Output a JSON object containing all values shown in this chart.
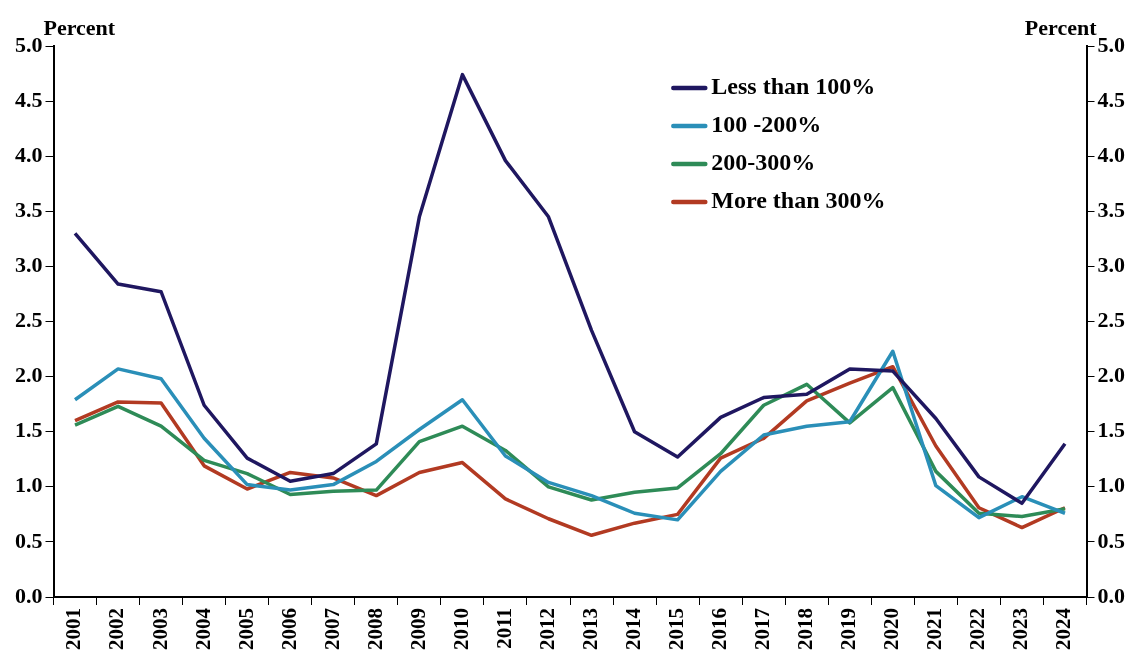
{
  "chart_data": {
    "type": "line",
    "ylabel": "Percent",
    "y2label": "Percent",
    "categories": [
      "2001",
      "2002",
      "2003",
      "2004",
      "2005",
      "2006",
      "2007",
      "2008",
      "2009",
      "2010",
      "2011",
      "2012",
      "2013",
      "2014",
      "2015",
      "2016",
      "2017",
      "2018",
      "2019",
      "2020",
      "2021",
      "2022",
      "2023",
      "2024"
    ],
    "series": [
      {
        "name": "Less than 100%",
        "color": "#1f1760",
        "values": [
          3.3,
          2.84,
          2.77,
          1.74,
          1.26,
          1.05,
          1.12,
          1.39,
          3.45,
          4.74,
          3.96,
          3.45,
          2.42,
          1.5,
          1.27,
          1.63,
          1.81,
          1.84,
          2.07,
          2.05,
          1.62,
          1.09,
          0.85,
          1.39
        ]
      },
      {
        "name": "100 -200%",
        "color": "#2a8fb8",
        "values": [
          1.79,
          2.07,
          1.98,
          1.44,
          1.02,
          0.97,
          1.02,
          1.23,
          1.52,
          1.79,
          1.28,
          1.04,
          0.92,
          0.76,
          0.7,
          1.14,
          1.47,
          1.55,
          1.59,
          2.23,
          1.01,
          0.72,
          0.91,
          0.76
        ]
      },
      {
        "name": "200-300%",
        "color": "#2e8b57",
        "values": [
          1.56,
          1.73,
          1.55,
          1.24,
          1.12,
          0.93,
          0.96,
          0.97,
          1.41,
          1.55,
          1.33,
          1.0,
          0.88,
          0.95,
          0.99,
          1.3,
          1.74,
          1.93,
          1.58,
          1.9,
          1.14,
          0.76,
          0.73,
          0.8
        ]
      },
      {
        "name": "More than 300%",
        "color": "#b23a22",
        "values": [
          1.6,
          1.77,
          1.76,
          1.19,
          0.98,
          1.13,
          1.08,
          0.92,
          1.13,
          1.22,
          0.89,
          0.71,
          0.56,
          0.67,
          0.75,
          1.26,
          1.44,
          1.78,
          1.94,
          2.09,
          1.37,
          0.81,
          0.63,
          0.81
        ]
      }
    ],
    "ylim": [
      0,
      5
    ],
    "yticks": [
      {
        "value": 0,
        "label": "0.0"
      },
      {
        "value": 0.5,
        "label": "0.5"
      },
      {
        "value": 1,
        "label": "1.0"
      },
      {
        "value": 1.5,
        "label": "1.5"
      },
      {
        "value": 2,
        "label": "2.0"
      },
      {
        "value": 2.5,
        "label": "2.5"
      },
      {
        "value": 3,
        "label": "3.0"
      },
      {
        "value": 3.5,
        "label": "3.5"
      },
      {
        "value": 4,
        "label": "4.0"
      },
      {
        "value": 4.5,
        "label": "4.5"
      },
      {
        "value": 5,
        "label": "5.0"
      }
    ],
    "y2lim": [
      0,
      5
    ],
    "y2ticks": [
      {
        "value": 0,
        "label": "0.0"
      },
      {
        "value": 0.5,
        "label": "0.5"
      },
      {
        "value": 1,
        "label": "1.0"
      },
      {
        "value": 1.5,
        "label": "1.5"
      },
      {
        "value": 2,
        "label": "2.0"
      },
      {
        "value": 2.5,
        "label": "2.5"
      },
      {
        "value": 3,
        "label": "3.0"
      },
      {
        "value": 3.5,
        "label": "3.5"
      },
      {
        "value": 4,
        "label": "4.0"
      },
      {
        "value": 4.5,
        "label": "4.5"
      },
      {
        "value": 5,
        "label": "5.0"
      }
    ],
    "grid": false,
    "legend": "top right",
    "marker": "none",
    "line_style": "solid"
  }
}
